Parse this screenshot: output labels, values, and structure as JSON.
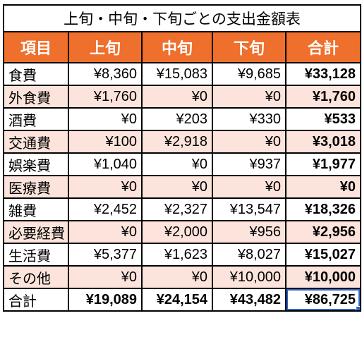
{
  "sheet": {
    "title": "上旬・中旬・下旬ごとの支出金額表",
    "headers": [
      "項目",
      "上旬",
      "中旬",
      "下旬",
      "合計"
    ],
    "rows": [
      {
        "label": "食費",
        "c1": "¥8,360",
        "c2": "¥15,083",
        "c3": "¥9,685",
        "total": "¥33,128"
      },
      {
        "label": "外食費",
        "c1": "¥1,760",
        "c2": "¥0",
        "c3": "¥0",
        "total": "¥1,760"
      },
      {
        "label": "酒費",
        "c1": "¥0",
        "c2": "¥203",
        "c3": "¥330",
        "total": "¥533"
      },
      {
        "label": "交通費",
        "c1": "¥100",
        "c2": "¥2,918",
        "c3": "¥0",
        "total": "¥3,018"
      },
      {
        "label": "娯楽費",
        "c1": "¥1,040",
        "c2": "¥0",
        "c3": "¥937",
        "total": "¥1,977"
      },
      {
        "label": "医療費",
        "c1": "¥0",
        "c2": "¥0",
        "c3": "¥0",
        "total": "¥0"
      },
      {
        "label": "雑費",
        "c1": "¥2,452",
        "c2": "¥2,327",
        "c3": "¥13,547",
        "total": "¥18,326"
      },
      {
        "label": "必要経費",
        "c1": "¥0",
        "c2": "¥2,000",
        "c3": "¥956",
        "total": "¥2,956"
      },
      {
        "label": "生活費",
        "c1": "¥5,377",
        "c2": "¥1,623",
        "c3": "¥8,027",
        "total": "¥15,027"
      },
      {
        "label": "その他",
        "c1": "¥0",
        "c2": "¥0",
        "c3": "¥10,000",
        "total": "¥10,000"
      }
    ],
    "sum": {
      "label": "合計",
      "c1": "¥19,089",
      "c2": "¥24,154",
      "c3": "¥43,482",
      "total": "¥86,725"
    }
  },
  "colors": {
    "header_bg": "#ef6f2c",
    "header_text": "#ffffff",
    "stripe_bg": "#fce4dc",
    "selection": "#2c64c8"
  }
}
